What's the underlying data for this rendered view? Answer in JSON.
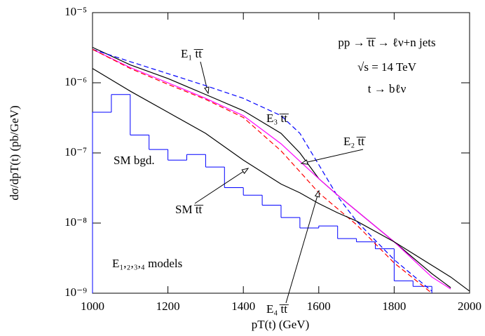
{
  "chart_data": {
    "type": "line",
    "xlabel": "pT(t) (GeV)",
    "ylabel": "dσ/dpT(t) (pb/GeV)",
    "log_y": true,
    "xlim": [
      1000,
      2000
    ],
    "xticks": [
      1000,
      1200,
      1400,
      1600,
      1800,
      2000
    ],
    "ylim": [
      1e-09,
      1e-05
    ],
    "yticks": [
      {
        "value": 1e-09,
        "label": "10⁻⁹"
      },
      {
        "value": 1e-08,
        "label": "10⁻⁸"
      },
      {
        "value": 1e-07,
        "label": "10⁻⁷"
      },
      {
        "value": 1e-06,
        "label": "10⁻⁶"
      },
      {
        "value": 1e-05,
        "label": "10⁻⁵"
      }
    ],
    "annotations": [
      "pp → t̅t̅ → ℓν+n jets",
      "√s = 14 TeV",
      "t → bℓν",
      "E₁,₂,₃,₄ models"
    ],
    "x": [
      1000,
      1100,
      1200,
      1300,
      1400,
      1500,
      1550,
      1600,
      1650,
      1700,
      1800,
      1900,
      1950,
      2000
    ],
    "series": [
      {
        "name": "E₁ t̅t̅",
        "color": "#000000",
        "dashed": false,
        "values": [
          3.2e-06,
          1.8e-06,
          1.15e-06,
          6.8e-07,
          4e-07,
          1.9e-07,
          1e-07,
          4.3e-08,
          2.5e-08,
          1.5e-08,
          5.4e-09,
          1.9e-09,
          1.2e-09,
          null
        ]
      },
      {
        "name": "E₃ t̅t̅",
        "color": "#0000ff",
        "dashed": true,
        "values": [
          3e-06,
          2e-06,
          1.35e-06,
          9.1e-07,
          6e-07,
          3.4e-07,
          1.9e-07,
          6.8e-08,
          2.4e-08,
          1.07e-08,
          3e-09,
          1.07e-09,
          null,
          null
        ]
      },
      {
        "name": "E₂ t̅t̅",
        "color": "#ff00ff",
        "dashed": false,
        "values": [
          3e-06,
          1.65e-06,
          1e-06,
          6e-07,
          3.4e-07,
          1.35e-07,
          7.6e-08,
          4.3e-08,
          2.5e-08,
          1.5e-08,
          5.4e-09,
          1.7e-09,
          1.15e-09,
          null
        ]
      },
      {
        "name": "E₄ t̅t̅",
        "color": "#ff0000",
        "dashed": true,
        "values": [
          3e-06,
          1.6e-06,
          9.5e-07,
          5.8e-07,
          3.2e-07,
          1.07e-07,
          5.4e-08,
          2.7e-08,
          1.6e-08,
          9.5e-09,
          2.7e-09,
          1e-09,
          null,
          null
        ]
      },
      {
        "name": "SM t̅t̅",
        "color": "#000000",
        "dashed": false,
        "values": [
          1.6e-06,
          7.6e-07,
          3.8e-07,
          1.9e-07,
          7.9e-08,
          3.6e-08,
          2.7e-08,
          1.9e-08,
          1.4e-08,
          1.07e-08,
          5.4e-09,
          2.5e-09,
          1.7e-09,
          1.07e-09
        ]
      }
    ],
    "histogram": {
      "name": "SM bgd.",
      "color": "#0000ff",
      "bins": [
        1000,
        1050,
        1100,
        1150,
        1200,
        1250,
        1300,
        1350,
        1400,
        1450,
        1500,
        1550,
        1600,
        1650,
        1700,
        1750,
        1800,
        1850,
        1900
      ],
      "values": [
        3.8e-07,
        6.8e-07,
        1.8e-07,
        1.12e-07,
        7.9e-08,
        9.5e-08,
        6.3e-08,
        3.2e-08,
        2.5e-08,
        1.8e-08,
        1.2e-08,
        8.5e-09,
        9.1e-09,
        6e-09,
        5.4e-09,
        4.3e-09,
        1.5e-09,
        1.25e-09
      ]
    }
  }
}
